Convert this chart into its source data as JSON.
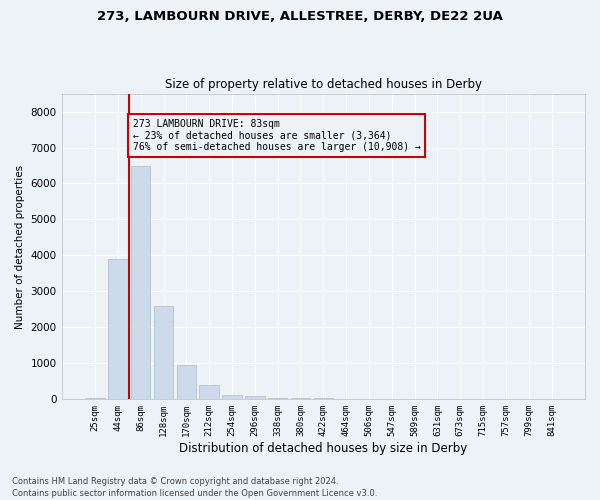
{
  "title_line1": "273, LAMBOURN DRIVE, ALLESTREE, DERBY, DE22 2UA",
  "title_line2": "Size of property relative to detached houses in Derby",
  "xlabel": "Distribution of detached houses by size in Derby",
  "ylabel": "Number of detached properties",
  "annotation_title": "273 LAMBOURN DRIVE: 83sqm",
  "annotation_line2": "← 23% of detached houses are smaller (3,364)",
  "annotation_line3": "76% of semi-detached houses are larger (10,908) →",
  "footer_line1": "Contains HM Land Registry data © Crown copyright and database right 2024.",
  "footer_line2": "Contains public sector information licensed under the Open Government Licence v3.0.",
  "bar_color": "#ccdaea",
  "bar_edge_color": "#aabccc",
  "marker_line_color": "#cc0000",
  "annotation_box_color": "#cc0000",
  "background_color": "#edf2f7",
  "grid_color": "#ffffff",
  "categories": [
    "25sqm",
    "44sqm",
    "86sqm",
    "128sqm",
    "170sqm",
    "212sqm",
    "254sqm",
    "296sqm",
    "338sqm",
    "380sqm",
    "422sqm",
    "464sqm",
    "506sqm",
    "547sqm",
    "589sqm",
    "631sqm",
    "673sqm",
    "715sqm",
    "757sqm",
    "799sqm",
    "841sqm"
  ],
  "values": [
    50,
    3900,
    6500,
    2600,
    950,
    400,
    130,
    80,
    50,
    50,
    30,
    10,
    5,
    2,
    2,
    1,
    1,
    0,
    0,
    0,
    0
  ],
  "marker_bin": 2,
  "ylim": [
    0,
    8500
  ],
  "yticks": [
    0,
    1000,
    2000,
    3000,
    4000,
    5000,
    6000,
    7000,
    8000
  ]
}
